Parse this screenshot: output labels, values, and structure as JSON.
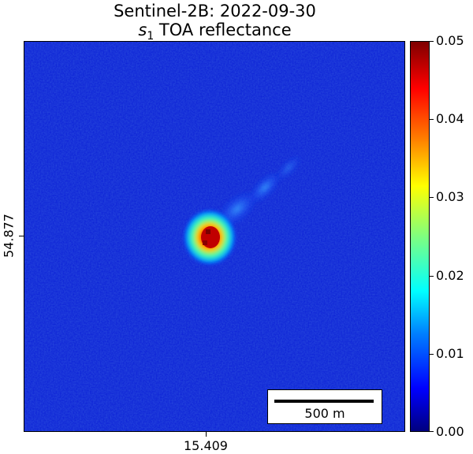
{
  "title": {
    "line1": "Sentinel-2B: 2022-09-30",
    "line2_symbol": "s",
    "line2_subscript": "1",
    "line2_text": " TOA reflectance"
  },
  "axes": {
    "x_tick_label": "15.409",
    "y_tick_label": "54.877"
  },
  "scalebar": {
    "label": "500 m"
  },
  "colorbar": {
    "ticks": [
      "0.00",
      "0.01",
      "0.02",
      "0.03",
      "0.04",
      "0.05"
    ],
    "min": 0.0,
    "max": 0.05,
    "colormap": "jet"
  },
  "colors": {
    "background_field": "#0a1ed6",
    "plume_core": "#c81414"
  }
}
